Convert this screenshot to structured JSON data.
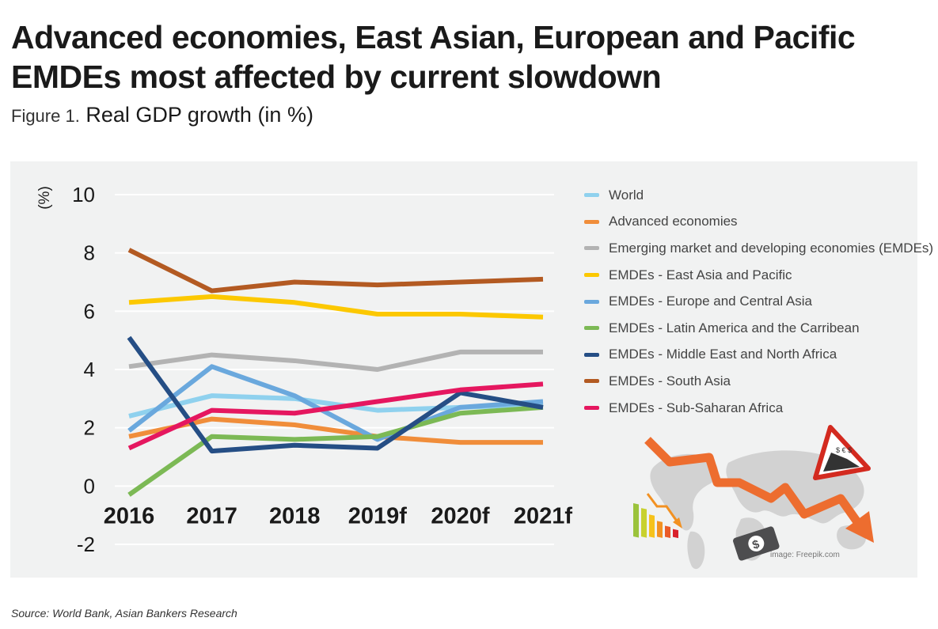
{
  "headline": "Advanced economies, East Asian, European and Pacific EMDEs most affected by current slowdown",
  "figure_label": "Figure 1.",
  "figure_title": "Real GDP growth (in %)",
  "image_credit": "image: Freepik.com",
  "source": "Source: World Bank, Asian Bankers Research",
  "illustration": {
    "icons": [
      "world-map-icon",
      "falling-arrow-icon",
      "bar-chart-icon",
      "warning-sign-icon",
      "money-bill-icon"
    ],
    "bill_symbol": "$",
    "currency_symbols": "$ € $"
  },
  "chart_data": {
    "type": "line",
    "title": "Real GDP growth (in %)",
    "ylabel": "(%)",
    "xlabel": "",
    "ylim": [
      -2,
      10
    ],
    "yticks": [
      10,
      8,
      6,
      4,
      2,
      0,
      -2
    ],
    "grid": true,
    "legend_position": "right",
    "categories": [
      "2016",
      "2017",
      "2018",
      "2019f",
      "2020f",
      "2021f"
    ],
    "series": [
      {
        "name": "World",
        "color": "#8fd1ee",
        "values": [
          2.4,
          3.1,
          3.0,
          2.6,
          2.7,
          2.8
        ]
      },
      {
        "name": "Advanced economies",
        "color": "#f08d3a",
        "values": [
          1.7,
          2.3,
          2.1,
          1.7,
          1.5,
          1.5
        ]
      },
      {
        "name": "Emerging market and developing economies (EMDEs)",
        "color": "#b3b3b3",
        "values": [
          4.1,
          4.5,
          4.3,
          4.0,
          4.6,
          4.6
        ]
      },
      {
        "name": "EMDEs - East Asia and Pacific",
        "color": "#fcc800",
        "values": [
          6.3,
          6.5,
          6.3,
          5.9,
          5.9,
          5.8
        ]
      },
      {
        "name": "EMDEs - Europe and Central Asia",
        "color": "#6aa8dd",
        "values": [
          1.9,
          4.1,
          3.1,
          1.6,
          2.7,
          2.9
        ]
      },
      {
        "name": "EMDEs - Latin America and the Carribean",
        "color": "#7cb955",
        "values": [
          -0.3,
          1.7,
          1.6,
          1.7,
          2.5,
          2.7
        ]
      },
      {
        "name": "EMDEs - Middle East and North Africa",
        "color": "#254e85",
        "values": [
          5.1,
          1.2,
          1.4,
          1.3,
          3.2,
          2.7
        ]
      },
      {
        "name": "EMDEs - South Asia",
        "color": "#b35a22",
        "values": [
          8.1,
          6.7,
          7.0,
          6.9,
          7.0,
          7.1
        ]
      },
      {
        "name": "EMDEs - Sub-Saharan Africa",
        "color": "#e5175f",
        "values": [
          1.3,
          2.6,
          2.5,
          2.9,
          3.3,
          3.5
        ]
      }
    ]
  }
}
